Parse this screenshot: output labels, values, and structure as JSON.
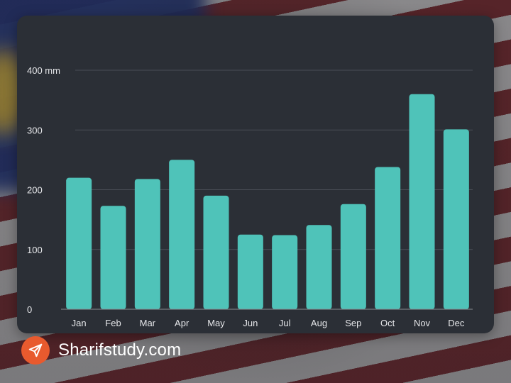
{
  "chart_data": {
    "type": "bar",
    "title": "",
    "xlabel": "",
    "ylabel": "",
    "categories": [
      "Jan",
      "Feb",
      "Mar",
      "Apr",
      "May",
      "Jun",
      "Jul",
      "Aug",
      "Sep",
      "Oct",
      "Nov",
      "Dec"
    ],
    "values": [
      220,
      173,
      218,
      250,
      190,
      125,
      124,
      141,
      176,
      238,
      360,
      301
    ],
    "ylim": [
      0,
      400
    ],
    "yticks": [
      0,
      100,
      200,
      300,
      400
    ],
    "ytick_labels": [
      "0",
      "100",
      "200",
      "300",
      "400 mm"
    ],
    "grid": true,
    "colors": {
      "bar": "#4fc3b9",
      "grid": "#4a4e56",
      "axis": "#8a8d93"
    }
  },
  "brand": {
    "name": "Sharifstudy.com",
    "logo_icon": "paper-plane-icon",
    "logo_color": "#e85a2e"
  }
}
